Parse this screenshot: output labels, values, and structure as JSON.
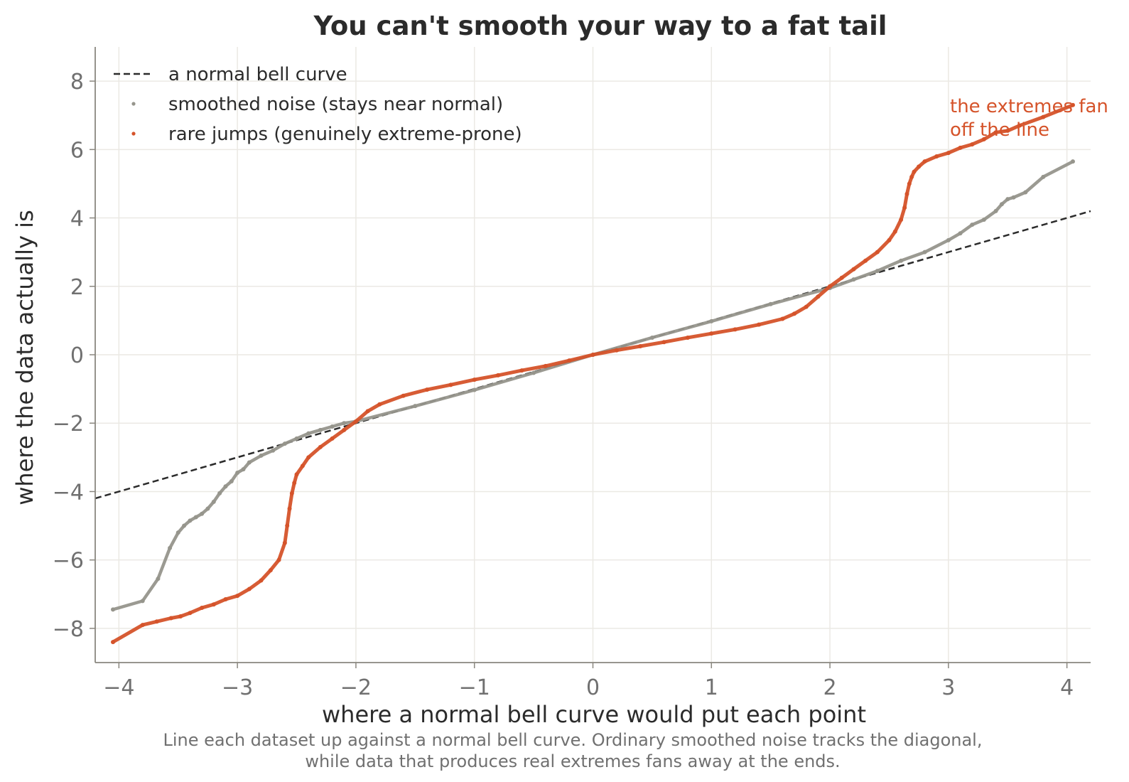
{
  "chart_data": {
    "type": "scatter",
    "title": "You can't smooth your way to a fat tail",
    "xlabel": "where a normal bell curve would put each point",
    "ylabel": "where the data actually is",
    "caption": [
      "Line each dataset up against a normal bell curve. Ordinary smoothed noise tracks the diagonal,",
      "while data that produces real extremes fans away at the ends."
    ],
    "xlim": [
      -4.2,
      4.2
    ],
    "ylim": [
      -9,
      9
    ],
    "xticks": [
      -4,
      -3,
      -2,
      -1,
      0,
      1,
      2,
      3,
      4
    ],
    "xtick_labels": [
      "−4",
      "−3",
      "−2",
      "−1",
      "0",
      "1",
      "2",
      "3",
      "4"
    ],
    "yticks": [
      -8,
      -6,
      -4,
      -2,
      0,
      2,
      4,
      6,
      8
    ],
    "ytick_labels": [
      "−8",
      "−6",
      "−4",
      "−2",
      "0",
      "2",
      "4",
      "6",
      "8"
    ],
    "grid": true,
    "legend_position": "top-left",
    "reference_line": {
      "name": "a normal bell curve",
      "style": "dashed",
      "color": "#2b2b2b",
      "x": [
        -4.2,
        4.2
      ],
      "y": [
        -4.2,
        4.2
      ]
    },
    "series": [
      {
        "name": "smoothed noise (stays near normal)",
        "color": "#96958c",
        "x": [
          -4.05,
          -3.8,
          -3.67,
          -3.57,
          -3.5,
          -3.45,
          -3.4,
          -3.35,
          -3.3,
          -3.25,
          -3.2,
          -3.15,
          -3.1,
          -3.05,
          -3.0,
          -2.95,
          -2.9,
          -2.8,
          -2.7,
          -2.6,
          -2.5,
          -2.4,
          -2.3,
          -2.2,
          -2.1,
          -2.0,
          -1.5,
          -1.0,
          -0.5,
          0.0,
          0.5,
          1.0,
          1.5,
          2.0,
          2.2,
          2.4,
          2.6,
          2.8,
          3.0,
          3.1,
          3.2,
          3.3,
          3.4,
          3.45,
          3.5,
          3.55,
          3.65,
          3.8,
          4.05
        ],
        "y": [
          -7.45,
          -7.2,
          -6.55,
          -5.65,
          -5.2,
          -5.0,
          -4.85,
          -4.75,
          -4.65,
          -4.5,
          -4.3,
          -4.05,
          -3.85,
          -3.7,
          -3.45,
          -3.35,
          -3.15,
          -2.95,
          -2.8,
          -2.6,
          -2.45,
          -2.3,
          -2.2,
          -2.1,
          -2.0,
          -1.95,
          -1.5,
          -1.03,
          -0.53,
          0.0,
          0.5,
          0.98,
          1.48,
          1.95,
          2.2,
          2.45,
          2.75,
          3.0,
          3.35,
          3.55,
          3.8,
          3.95,
          4.2,
          4.4,
          4.55,
          4.6,
          4.75,
          5.2,
          5.65
        ]
      },
      {
        "name": "rare jumps (genuinely extreme-prone)",
        "color": "#d5532a",
        "x": [
          -4.05,
          -3.8,
          -3.68,
          -3.56,
          -3.48,
          -3.4,
          -3.3,
          -3.2,
          -3.1,
          -3.0,
          -2.9,
          -2.8,
          -2.72,
          -2.65,
          -2.6,
          -2.58,
          -2.56,
          -2.54,
          -2.52,
          -2.5,
          -2.45,
          -2.4,
          -2.3,
          -2.2,
          -2.1,
          -2.0,
          -1.9,
          -1.8,
          -1.6,
          -1.4,
          -1.2,
          -1.0,
          -0.8,
          -0.6,
          -0.4,
          -0.2,
          0.0,
          0.2,
          0.4,
          0.6,
          0.8,
          1.0,
          1.2,
          1.4,
          1.6,
          1.7,
          1.8,
          1.9,
          2.0,
          2.1,
          2.2,
          2.3,
          2.4,
          2.5,
          2.55,
          2.6,
          2.63,
          2.65,
          2.67,
          2.69,
          2.71,
          2.75,
          2.8,
          2.9,
          3.0,
          3.1,
          3.2,
          3.3,
          3.4,
          3.5,
          3.6,
          3.8,
          4.05
        ],
        "y": [
          -8.4,
          -7.9,
          -7.8,
          -7.7,
          -7.65,
          -7.55,
          -7.4,
          -7.3,
          -7.15,
          -7.05,
          -6.85,
          -6.6,
          -6.3,
          -6.0,
          -5.5,
          -5.0,
          -4.5,
          -4.05,
          -3.75,
          -3.5,
          -3.25,
          -3.0,
          -2.7,
          -2.45,
          -2.2,
          -1.95,
          -1.65,
          -1.45,
          -1.2,
          -1.02,
          -0.88,
          -0.73,
          -0.6,
          -0.46,
          -0.33,
          -0.17,
          0.0,
          0.13,
          0.25,
          0.37,
          0.5,
          0.62,
          0.74,
          0.88,
          1.05,
          1.2,
          1.4,
          1.7,
          2.0,
          2.25,
          2.5,
          2.75,
          3.0,
          3.35,
          3.6,
          3.95,
          4.3,
          4.7,
          5.0,
          5.2,
          5.35,
          5.5,
          5.65,
          5.8,
          5.9,
          6.05,
          6.15,
          6.3,
          6.5,
          6.55,
          6.7,
          6.95,
          7.3
        ]
      }
    ],
    "annotation": {
      "lines": [
        "the extremes fan",
        "off the line"
      ],
      "color": "#d5532a"
    }
  }
}
